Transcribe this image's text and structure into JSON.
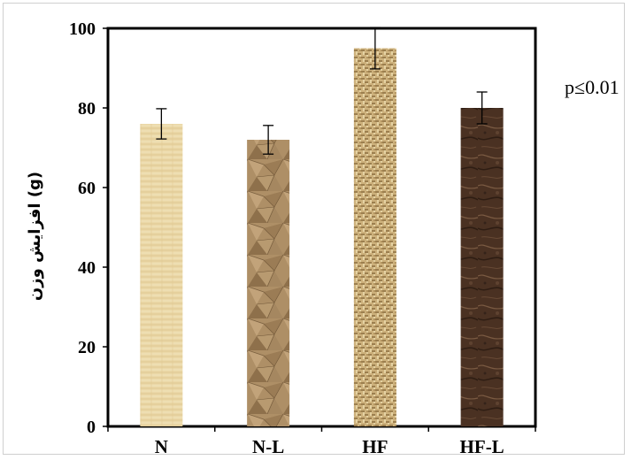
{
  "chart_data": {
    "type": "bar",
    "categories": [
      "N",
      "N-L",
      "HF",
      "HF-L"
    ],
    "values": [
      76,
      72,
      95,
      80
    ],
    "errors": [
      3.8,
      3.6,
      5.2,
      4.0
    ],
    "ylabel": "(g) افزایش وزن",
    "ylim": [
      0,
      100
    ],
    "yticks": [
      0,
      20,
      40,
      60,
      80,
      100
    ],
    "grid": false,
    "legend": "none",
    "annotation": "p≤0.01",
    "bar_colors": [
      "#e8d4a2",
      "#a98a62",
      "#c8ad78",
      "#4e3424"
    ]
  }
}
